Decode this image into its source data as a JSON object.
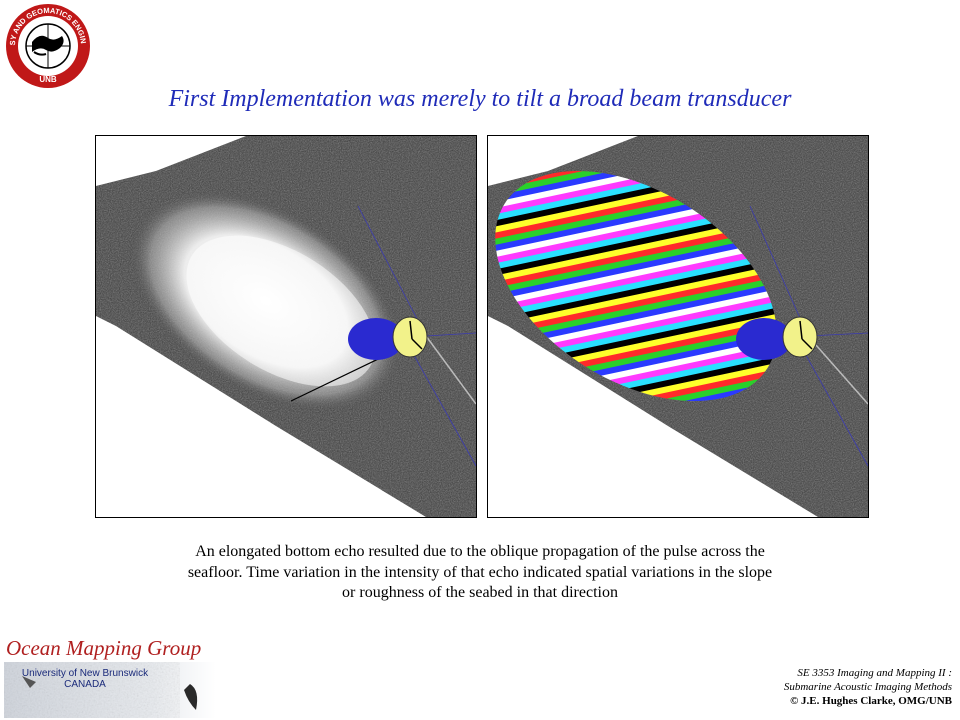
{
  "logo": {
    "ring_text": "GEODESY AND GEOMATICS ENGINEERING",
    "bottom_text": "UNB"
  },
  "slide": {
    "title": "First Implementation was merely to tilt a broad beam transducer",
    "caption_lines": [
      "An elongated bottom echo resulted due to the oblique propagation of the pulse across the",
      "seafloor. Time variation in the intensity of that echo indicated spatial variations in the slope",
      "or roughness of the seabed in that direction"
    ]
  },
  "footer": {
    "group_name": "Ocean Mapping Group",
    "university_lines": [
      "University of New Brunswick",
      "CANADA"
    ],
    "course_lines": [
      "SE 3353 Imaging and Mapping II :",
      "Submarine Acoustic Imaging Methods"
    ],
    "credit": "© J.E. Hughes Clarke, OMG/UNB"
  },
  "colors": {
    "title_blue": "#1f2bb8",
    "group_red": "#b02020",
    "transducer_yellow": "#f2f28a",
    "beam_blue": "#2a2ad0"
  }
}
